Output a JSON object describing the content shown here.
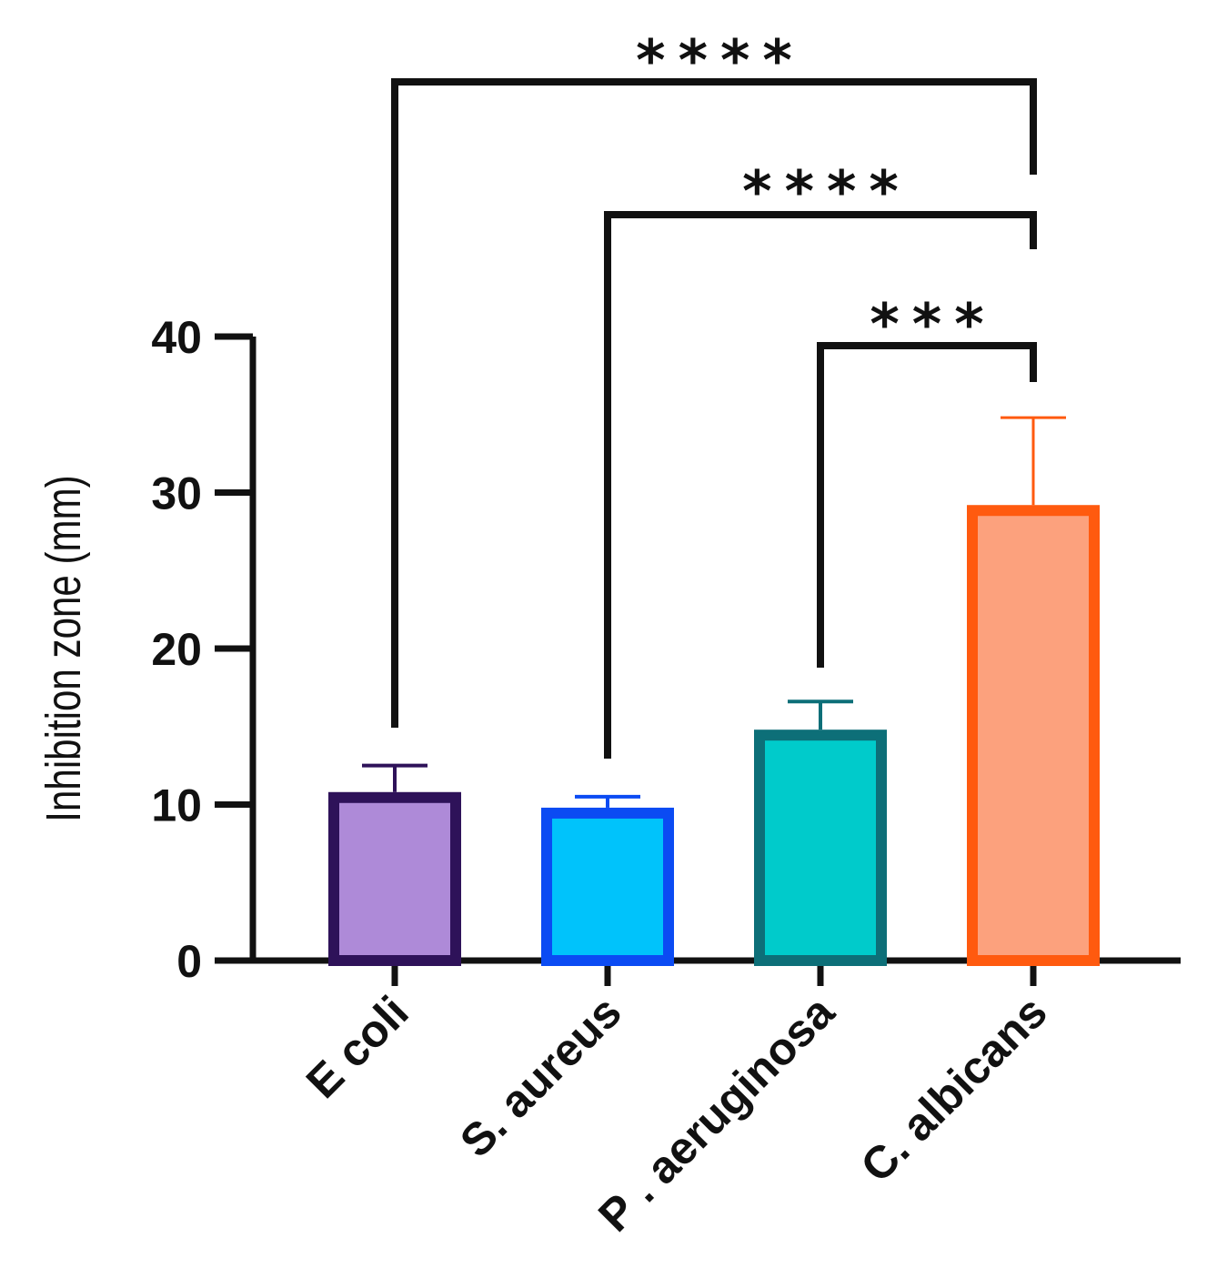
{
  "chart_data": {
    "type": "bar",
    "title": "",
    "xlabel": "",
    "ylabel": "Inhibition zone (mm)",
    "ylim": [
      0,
      40
    ],
    "yticks": [
      0,
      10,
      20,
      30,
      40
    ],
    "categories": [
      "E coli",
      "S. aureus",
      "P . aeruginosa",
      "C. albicans"
    ],
    "values": [
      10.8,
      9.8,
      14.8,
      29.2
    ],
    "errors": [
      1.7,
      0.7,
      1.8,
      5.6
    ],
    "fill_colors": [
      "#ae8ad8",
      "#00c3fb",
      "#00cbcb",
      "#fca17d"
    ],
    "edge_colors": [
      "#2e1259",
      "#0b4bf3",
      "#0d6f78",
      "#ff5a0f"
    ],
    "significance": [
      {
        "from": "E coli",
        "to": "C. albicans",
        "label": "****"
      },
      {
        "from": "S. aureus",
        "to": "C. albicans",
        "label": "****"
      },
      {
        "from": "P . aeruginosa",
        "to": "C. albicans",
        "label": "***"
      }
    ]
  }
}
